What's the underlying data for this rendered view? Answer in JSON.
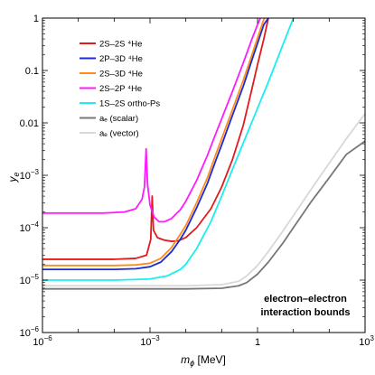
{
  "chart_data": {
    "type": "line",
    "xlabel": "m_ϕ [MeV]",
    "ylabel": "y_e",
    "xscale": "log",
    "yscale": "log",
    "xlim": [
      1e-06,
      1000
    ],
    "ylim": [
      1e-06,
      1
    ],
    "grid": false,
    "legend_position": "top-left",
    "x_ticks": [
      {
        "value": 1e-06,
        "base": "10",
        "exp": "−6"
      },
      {
        "value": 0.001,
        "base": "10",
        "exp": "−3"
      },
      {
        "value": 1,
        "base": "1",
        "exp": ""
      },
      {
        "value": 1000,
        "base": "10",
        "exp": "3"
      }
    ],
    "y_ticks": [
      {
        "value": 1e-06,
        "base": "10",
        "exp": "−6"
      },
      {
        "value": 1e-05,
        "base": "10",
        "exp": "−5"
      },
      {
        "value": 0.0001,
        "base": "10",
        "exp": "−4"
      },
      {
        "value": 0.001,
        "base": "10",
        "exp": "−3"
      },
      {
        "value": 0.01,
        "base": "0.01",
        "exp": ""
      },
      {
        "value": 0.1,
        "base": "0.1",
        "exp": ""
      },
      {
        "value": 1,
        "base": "1",
        "exp": ""
      }
    ],
    "annotation": [
      "electron–electron",
      "interaction bounds"
    ],
    "series": [
      {
        "name": "2S–2S ⁴He",
        "color": "#e31a1c",
        "points": [
          [
            1e-06,
            2.5e-05
          ],
          [
            0.0001,
            2.5e-05
          ],
          [
            0.0004,
            2.6e-05
          ],
          [
            0.0008,
            3e-05
          ],
          [
            0.00105,
            6e-05
          ],
          [
            0.00115,
            0.0004
          ],
          [
            0.00125,
            9e-05
          ],
          [
            0.0016,
            6.5e-05
          ],
          [
            0.0025,
            5.8e-05
          ],
          [
            0.004,
            5.5e-05
          ],
          [
            0.006,
            5.6e-05
          ],
          [
            0.01,
            6.5e-05
          ],
          [
            0.02,
            0.0001
          ],
          [
            0.05,
            0.00023
          ],
          [
            0.1,
            0.0006
          ],
          [
            0.2,
            0.002
          ],
          [
            0.4,
            0.009
          ],
          [
            0.7,
            0.045
          ],
          [
            1,
            0.13
          ],
          [
            1.5,
            0.4
          ],
          [
            2,
            1.0
          ]
        ]
      },
      {
        "name": "2P–3D ⁴He",
        "color": "#1d2bd6",
        "points": [
          [
            1e-06,
            1.6e-05
          ],
          [
            0.0001,
            1.6e-05
          ],
          [
            0.0004,
            1.65e-05
          ],
          [
            0.001,
            1.8e-05
          ],
          [
            0.002,
            2.2e-05
          ],
          [
            0.004,
            3.5e-05
          ],
          [
            0.007,
            6e-05
          ],
          [
            0.01,
            9e-05
          ],
          [
            0.02,
            0.00024
          ],
          [
            0.04,
            0.0007
          ],
          [
            0.07,
            0.002
          ],
          [
            0.1,
            0.0038
          ],
          [
            0.2,
            0.014
          ],
          [
            0.4,
            0.05
          ],
          [
            0.7,
            0.16
          ],
          [
            1,
            0.33
          ],
          [
            1.5,
            0.75
          ],
          [
            2,
            1.0
          ]
        ]
      },
      {
        "name": "2S–3D ⁴He",
        "color": "#ff8c1a",
        "points": [
          [
            1e-06,
            1.9e-05
          ],
          [
            0.0001,
            1.9e-05
          ],
          [
            0.0004,
            1.95e-05
          ],
          [
            0.001,
            2.1e-05
          ],
          [
            0.002,
            2.6e-05
          ],
          [
            0.004,
            4.2e-05
          ],
          [
            0.007,
            7.5e-05
          ],
          [
            0.01,
            0.00011
          ],
          [
            0.02,
            0.0003
          ],
          [
            0.04,
            0.0009
          ],
          [
            0.07,
            0.0026
          ],
          [
            0.1,
            0.005
          ],
          [
            0.2,
            0.018
          ],
          [
            0.4,
            0.065
          ],
          [
            0.7,
            0.2
          ],
          [
            1,
            0.42
          ],
          [
            1.5,
            0.95
          ],
          [
            1.6,
            1.0
          ]
        ]
      },
      {
        "name": "2S–2P ⁴He",
        "color": "#ff1aff",
        "points": [
          [
            1e-06,
            0.00019
          ],
          [
            5e-05,
            0.00019
          ],
          [
            0.0002,
            0.0002
          ],
          [
            0.0004,
            0.00023
          ],
          [
            0.0006,
            0.00035
          ],
          [
            0.0007,
            0.0006
          ],
          [
            0.00078,
            0.0032
          ],
          [
            0.00085,
            0.0007
          ],
          [
            0.001,
            0.00027
          ],
          [
            0.0013,
            0.00016
          ],
          [
            0.0018,
            0.00013
          ],
          [
            0.0025,
            0.00013
          ],
          [
            0.004,
            0.00015
          ],
          [
            0.007,
            0.00022
          ],
          [
            0.01,
            0.00032
          ],
          [
            0.02,
            0.0008
          ],
          [
            0.04,
            0.0024
          ],
          [
            0.07,
            0.0065
          ],
          [
            0.1,
            0.012
          ],
          [
            0.2,
            0.04
          ],
          [
            0.4,
            0.14
          ],
          [
            0.7,
            0.4
          ],
          [
            1,
            0.75
          ],
          [
            1.2,
            1.0
          ]
        ]
      },
      {
        "name": "1S–2S ortho-Ps",
        "color": "#1aeef0",
        "points": [
          [
            1e-06,
            1e-05
          ],
          [
            0.0001,
            1e-05
          ],
          [
            0.001,
            1.05e-05
          ],
          [
            0.003,
            1.2e-05
          ],
          [
            0.007,
            1.6e-05
          ],
          [
            0.01,
            2e-05
          ],
          [
            0.02,
            4e-05
          ],
          [
            0.05,
            0.00013
          ],
          [
            0.1,
            0.0004
          ],
          [
            0.2,
            0.0013
          ],
          [
            0.5,
            0.006
          ],
          [
            1,
            0.019
          ],
          [
            2,
            0.06
          ],
          [
            5,
            0.3
          ],
          [
            10,
            1.0
          ]
        ]
      },
      {
        "name": "a_e (scalar)",
        "color": "#777777",
        "points": [
          [
            1e-06,
            6.8e-06
          ],
          [
            0.01,
            6.8e-06
          ],
          [
            0.1,
            7e-06
          ],
          [
            0.3,
            7.8e-06
          ],
          [
            0.5,
            9e-06
          ],
          [
            1,
            1.3e-05
          ],
          [
            2,
            2.2e-05
          ],
          [
            5,
            5e-05
          ],
          [
            10,
            0.0001
          ],
          [
            30,
            0.0003
          ],
          [
            100,
            0.0009
          ],
          [
            300,
            0.0025
          ],
          [
            1000,
            0.0045
          ]
        ]
      },
      {
        "name": "a_e (vector)",
        "color": "#d8d8d8",
        "points": [
          [
            1e-06,
            7.8e-06
          ],
          [
            0.01,
            7.8e-06
          ],
          [
            0.1,
            8.2e-06
          ],
          [
            0.3,
            9.5e-06
          ],
          [
            0.5,
            1.2e-05
          ],
          [
            1,
            1.9e-05
          ],
          [
            2,
            3.5e-05
          ],
          [
            5,
            8.5e-05
          ],
          [
            10,
            0.00017
          ],
          [
            30,
            0.00052
          ],
          [
            100,
            0.0017
          ],
          [
            300,
            0.005
          ],
          [
            1000,
            0.015
          ]
        ]
      }
    ],
    "legend": [
      {
        "label": "2S–2S ⁴He",
        "color": "#e31a1c"
      },
      {
        "label": "2P–3D ⁴He",
        "color": "#1d2bd6"
      },
      {
        "label": "2S–3D ⁴He",
        "color": "#ff8c1a"
      },
      {
        "label": "2S–2P ⁴He",
        "color": "#ff1aff"
      },
      {
        "label": "1S–2S ortho-Ps",
        "color": "#1aeef0"
      },
      {
        "label": "aₑ (scalar)",
        "color": "#777777"
      },
      {
        "label": "aₑ (vector)",
        "color": "#d8d8d8"
      }
    ]
  }
}
